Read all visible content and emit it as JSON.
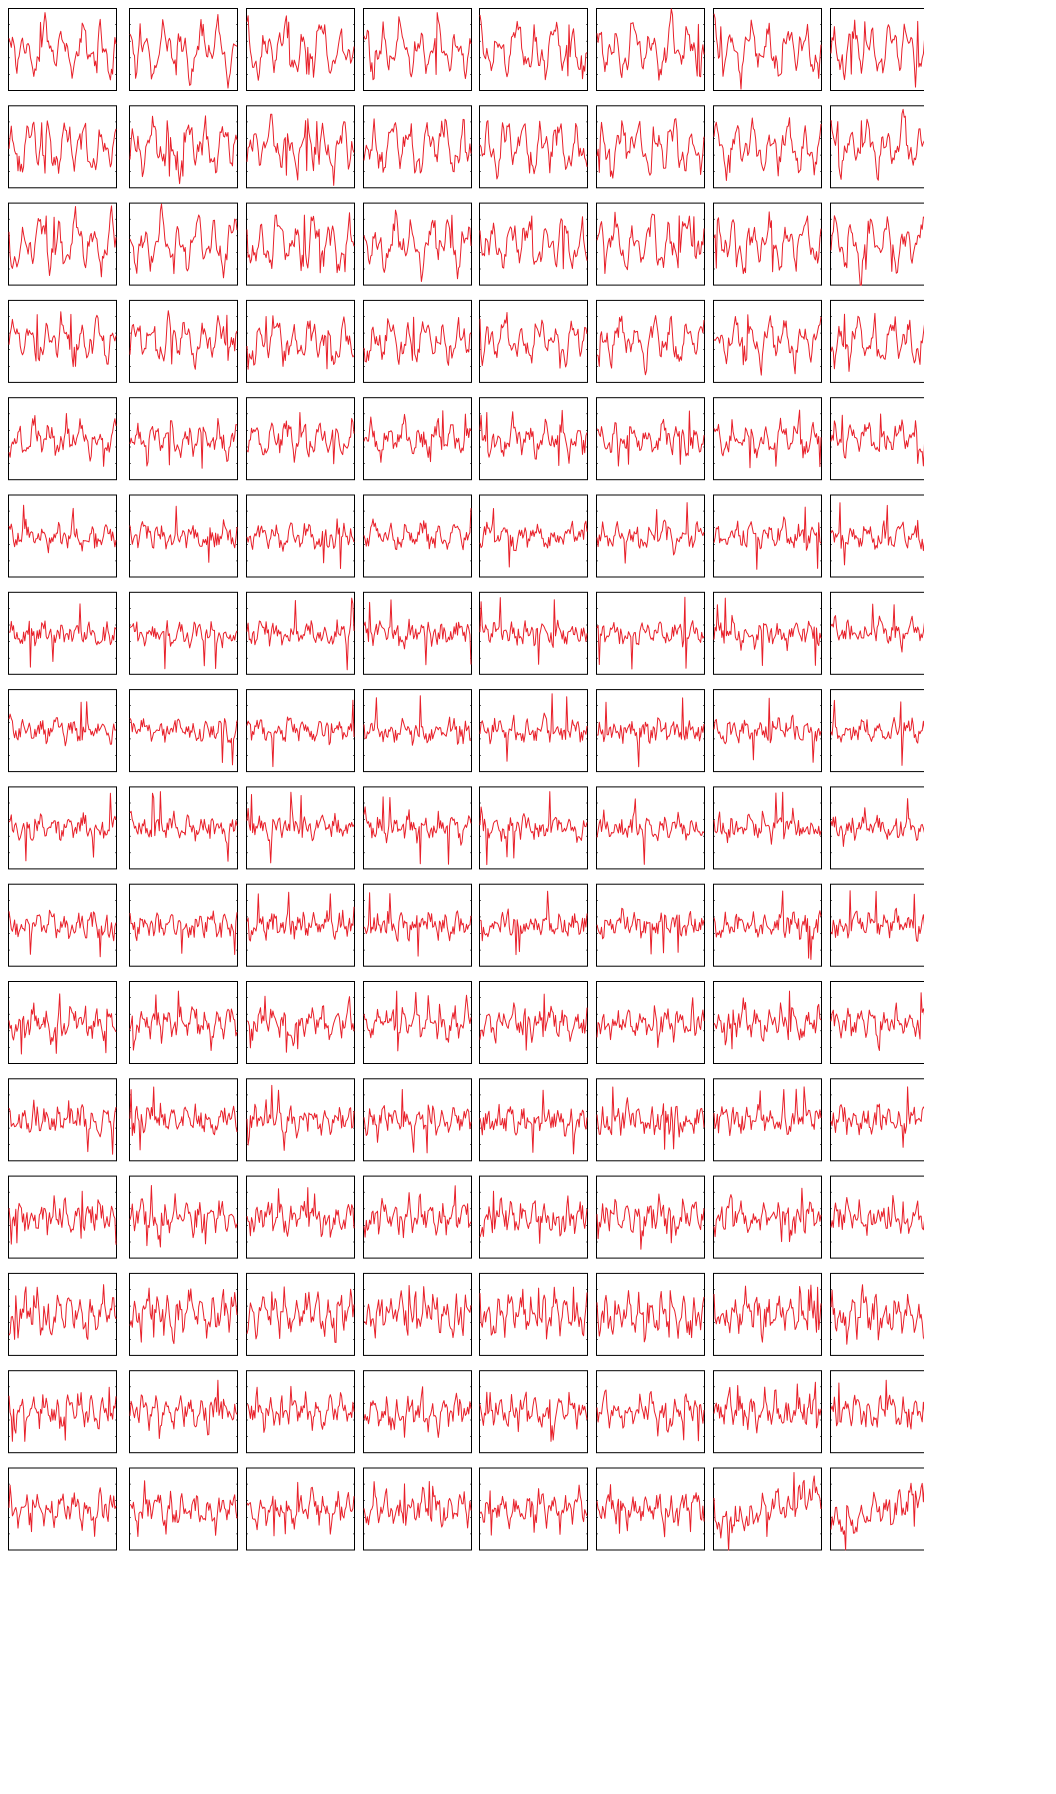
{
  "chart_data": {
    "type": "line",
    "layout": {
      "rows": 16,
      "cols": 8
    },
    "line_color": "#e8202a",
    "frame_color": "#000000",
    "background": "#ffffff",
    "title": "",
    "xlabel": "",
    "ylabel": "",
    "axis_labels_shown": false,
    "tick_labels_shown": false,
    "grid": false,
    "legend": "none",
    "x_range": [
      0,
      1
    ],
    "y_range": [
      -1,
      1
    ],
    "points_per_panel": 96,
    "note": "",
    "row_profiles": [
      {
        "row": 1,
        "amplitude": 0.85,
        "frequency": 0.95,
        "spike": 0.15
      },
      {
        "row": 2,
        "amplitude": 0.85,
        "frequency": 1.0,
        "spike": 0.2
      },
      {
        "row": 3,
        "amplitude": 0.85,
        "frequency": 1.0,
        "spike": 0.2
      },
      {
        "row": 4,
        "amplitude": 0.7,
        "frequency": 1.05,
        "spike": 0.35
      },
      {
        "row": 5,
        "amplitude": 0.5,
        "frequency": 1.1,
        "spike": 0.55
      },
      {
        "row": 6,
        "amplitude": 0.35,
        "frequency": 1.1,
        "spike": 0.7
      },
      {
        "row": 7,
        "amplitude": 0.3,
        "frequency": 1.15,
        "spike": 0.75
      },
      {
        "row": 8,
        "amplitude": 0.3,
        "frequency": 1.15,
        "spike": 0.75
      },
      {
        "row": 9,
        "amplitude": 0.3,
        "frequency": 1.2,
        "spike": 0.75
      },
      {
        "row": 10,
        "amplitude": 0.3,
        "frequency": 1.3,
        "spike": 0.7
      },
      {
        "row": 11,
        "amplitude": 0.45,
        "frequency": 1.4,
        "spike": 0.65
      },
      {
        "row": 12,
        "amplitude": 0.35,
        "frequency": 1.5,
        "spike": 0.7
      },
      {
        "row": 13,
        "amplitude": 0.45,
        "frequency": 1.55,
        "spike": 0.65
      },
      {
        "row": 14,
        "amplitude": 0.6,
        "frequency": 1.6,
        "spike": 0.5
      },
      {
        "row": 15,
        "amplitude": 0.45,
        "frequency": 1.5,
        "spike": 0.65
      },
      {
        "row": 16,
        "amplitude": 0.45,
        "frequency": 1.4,
        "spike": 0.6
      }
    ]
  }
}
